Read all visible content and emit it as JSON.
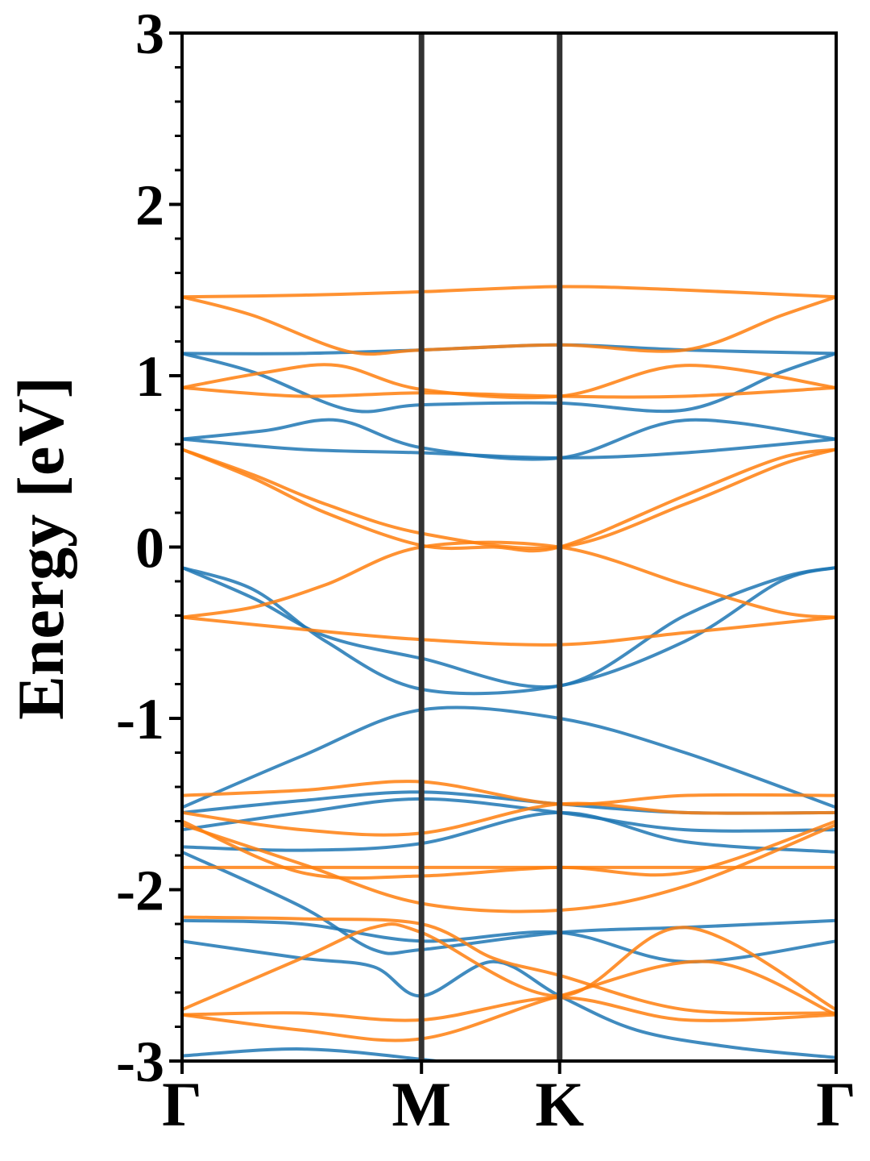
{
  "chart_data": {
    "type": "line",
    "title": "",
    "xlabel": "",
    "ylabel": "Energy [eV]",
    "ylim": [
      -3,
      3
    ],
    "yticks": [
      3,
      2,
      1,
      0,
      -1,
      -2,
      -3
    ],
    "ytick_labels": [
      "3",
      "2",
      "1",
      "0",
      "-1",
      "-2",
      "-3"
    ],
    "y_minor_step": 0.2,
    "kpath": {
      "labels": [
        "Γ",
        "M",
        "K",
        "Γ"
      ],
      "positions": [
        0,
        1,
        1.577,
        2.732
      ]
    },
    "grid": false,
    "legend": "none",
    "series": [
      {
        "color": "#1f77b4",
        "bands": [
          [
            [
              0,
              -2.97
            ],
            [
              0.5,
              -2.93
            ],
            [
              1,
              -2.99
            ],
            [
              1.3,
              -3.05
            ]
          ],
          [
            [
              0,
              -2.3
            ],
            [
              0.5,
              -2.4
            ],
            [
              0.8,
              -2.45
            ],
            [
              1,
              -2.62
            ],
            [
              1.3,
              -2.42
            ],
            [
              1.577,
              -2.62
            ],
            [
              1.9,
              -2.82
            ],
            [
              2.3,
              -2.92
            ],
            [
              2.732,
              -2.98
            ]
          ],
          [
            [
              0,
              -2.18
            ],
            [
              0.5,
              -2.2
            ],
            [
              1,
              -2.3
            ],
            [
              1.577,
              -2.25
            ],
            [
              2.1,
              -2.42
            ],
            [
              2.732,
              -2.3
            ]
          ],
          [
            [
              0,
              -1.78
            ],
            [
              0.5,
              -2.1
            ],
            [
              0.8,
              -2.35
            ],
            [
              1,
              -2.35
            ],
            [
              1.577,
              -2.25
            ],
            [
              2.1,
              -2.22
            ],
            [
              2.732,
              -2.18
            ]
          ],
          [
            [
              0,
              -1.75
            ],
            [
              0.5,
              -1.77
            ],
            [
              1,
              -1.73
            ],
            [
              1.577,
              -1.55
            ],
            [
              2.1,
              -1.72
            ],
            [
              2.732,
              -1.78
            ]
          ],
          [
            [
              0,
              -1.65
            ],
            [
              0.5,
              -1.55
            ],
            [
              1,
              -1.47
            ],
            [
              1.577,
              -1.55
            ],
            [
              2.1,
              -1.65
            ],
            [
              2.732,
              -1.65
            ]
          ],
          [
            [
              0,
              -1.55
            ],
            [
              0.5,
              -1.48
            ],
            [
              1,
              -1.43
            ],
            [
              1.577,
              -1.5
            ],
            [
              2.1,
              -1.55
            ],
            [
              2.732,
              -1.55
            ]
          ],
          [
            [
              0,
              -1.52
            ],
            [
              0.5,
              -1.22
            ],
            [
              1,
              -0.95
            ],
            [
              1.577,
              -1.0
            ],
            [
              2.1,
              -1.2
            ],
            [
              2.732,
              -1.52
            ]
          ],
          [
            [
              0,
              -0.12
            ],
            [
              0.3,
              -0.25
            ],
            [
              0.6,
              -0.55
            ],
            [
              1,
              -0.83
            ],
            [
              1.577,
              -0.81
            ],
            [
              2.1,
              -0.55
            ],
            [
              2.5,
              -0.2
            ],
            [
              2.732,
              -0.12
            ]
          ],
          [
            [
              0,
              -0.12
            ],
            [
              0.3,
              -0.3
            ],
            [
              0.6,
              -0.52
            ],
            [
              1,
              -0.65
            ],
            [
              1.577,
              -0.81
            ],
            [
              2.1,
              -0.4
            ],
            [
              2.5,
              -0.18
            ],
            [
              2.732,
              -0.12
            ]
          ],
          [
            [
              0,
              0.63
            ],
            [
              0.5,
              0.57
            ],
            [
              1,
              0.55
            ],
            [
              1.577,
              0.52
            ],
            [
              2.1,
              0.55
            ],
            [
              2.732,
              0.63
            ]
          ],
          [
            [
              0,
              0.63
            ],
            [
              0.35,
              0.68
            ],
            [
              0.65,
              0.74
            ],
            [
              1,
              0.58
            ],
            [
              1.577,
              0.52
            ],
            [
              2.1,
              0.74
            ],
            [
              2.732,
              0.63
            ]
          ],
          [
            [
              0,
              1.13
            ],
            [
              0.3,
              1.02
            ],
            [
              0.7,
              0.8
            ],
            [
              1,
              0.83
            ],
            [
              1.577,
              0.84
            ],
            [
              2.1,
              0.8
            ],
            [
              2.5,
              1.02
            ],
            [
              2.732,
              1.13
            ]
          ],
          [
            [
              0,
              1.13
            ],
            [
              0.5,
              1.13
            ],
            [
              1,
              1.15
            ],
            [
              1.577,
              1.18
            ],
            [
              2.1,
              1.15
            ],
            [
              2.732,
              1.13
            ]
          ]
        ]
      },
      {
        "color": "#ff7f0e",
        "bands": [
          [
            [
              0,
              -2.73
            ],
            [
              0.5,
              -2.72
            ],
            [
              1,
              -2.76
            ],
            [
              1.577,
              -2.63
            ],
            [
              2.1,
              -2.76
            ],
            [
              2.732,
              -2.73
            ]
          ],
          [
            [
              0,
              -2.73
            ],
            [
              0.5,
              -2.82
            ],
            [
              1,
              -2.87
            ],
            [
              1.577,
              -2.62
            ],
            [
              2.2,
              -2.42
            ],
            [
              2.732,
              -2.73
            ]
          ],
          [
            [
              0,
              -2.7
            ],
            [
              0.5,
              -2.4
            ],
            [
              0.8,
              -2.22
            ],
            [
              1,
              -2.25
            ],
            [
              1.577,
              -2.62
            ],
            [
              2.1,
              -2.22
            ],
            [
              2.732,
              -2.7
            ]
          ],
          [
            [
              0,
              -2.16
            ],
            [
              0.5,
              -2.17
            ],
            [
              1,
              -2.2
            ],
            [
              1.3,
              -2.4
            ],
            [
              1.577,
              -2.5
            ],
            [
              2.1,
              -2.7
            ],
            [
              2.732,
              -2.72
            ]
          ],
          [
            [
              0,
              -1.87
            ],
            [
              0.5,
              -1.87
            ],
            [
              1,
              -1.87
            ],
            [
              1.577,
              -1.87
            ],
            [
              2.1,
              -1.87
            ],
            [
              2.732,
              -1.87
            ]
          ],
          [
            [
              0,
              -1.6
            ],
            [
              0.5,
              -1.9
            ],
            [
              1,
              -1.92
            ],
            [
              1.577,
              -1.87
            ],
            [
              2.1,
              -1.9
            ],
            [
              2.732,
              -1.6
            ]
          ],
          [
            [
              0,
              -1.62
            ],
            [
              0.5,
              -1.85
            ],
            [
              1,
              -2.08
            ],
            [
              1.577,
              -2.12
            ],
            [
              2.1,
              -1.98
            ],
            [
              2.732,
              -1.62
            ]
          ],
          [
            [
              0,
              -1.55
            ],
            [
              0.5,
              -1.65
            ],
            [
              1,
              -1.67
            ],
            [
              1.577,
              -1.5
            ],
            [
              2.1,
              -1.55
            ],
            [
              2.732,
              -1.55
            ]
          ],
          [
            [
              0,
              -1.45
            ],
            [
              0.5,
              -1.42
            ],
            [
              1,
              -1.37
            ],
            [
              1.577,
              -1.5
            ],
            [
              2.1,
              -1.45
            ],
            [
              2.732,
              -1.45
            ]
          ],
          [
            [
              0,
              -0.41
            ],
            [
              0.5,
              -0.48
            ],
            [
              1,
              -0.54
            ],
            [
              1.577,
              -0.57
            ],
            [
              2.1,
              -0.5
            ],
            [
              2.732,
              -0.41
            ]
          ],
          [
            [
              0,
              -0.41
            ],
            [
              0.3,
              -0.35
            ],
            [
              0.6,
              -0.22
            ],
            [
              1,
              0.0
            ],
            [
              1.577,
              0.0
            ],
            [
              2.1,
              -0.22
            ],
            [
              2.5,
              -0.38
            ],
            [
              2.732,
              -0.41
            ]
          ],
          [
            [
              0,
              0.57
            ],
            [
              0.3,
              0.4
            ],
            [
              0.6,
              0.2
            ],
            [
              1,
              0.01
            ],
            [
              1.3,
              0.0
            ],
            [
              1.577,
              0.0
            ],
            [
              2.1,
              0.3
            ],
            [
              2.5,
              0.52
            ],
            [
              2.732,
              0.57
            ]
          ],
          [
            [
              0,
              0.57
            ],
            [
              0.3,
              0.42
            ],
            [
              0.6,
              0.25
            ],
            [
              1,
              0.08
            ],
            [
              1.577,
              0.0
            ],
            [
              2.1,
              0.25
            ],
            [
              2.5,
              0.48
            ],
            [
              2.732,
              0.57
            ]
          ],
          [
            [
              0,
              0.93
            ],
            [
              0.5,
              0.88
            ],
            [
              1,
              0.9
            ],
            [
              1.577,
              0.88
            ],
            [
              2.1,
              0.88
            ],
            [
              2.732,
              0.93
            ]
          ],
          [
            [
              0,
              0.93
            ],
            [
              0.35,
              1.02
            ],
            [
              0.65,
              1.06
            ],
            [
              1,
              0.92
            ],
            [
              1.577,
              0.88
            ],
            [
              2.1,
              1.06
            ],
            [
              2.732,
              0.93
            ]
          ],
          [
            [
              0,
              1.46
            ],
            [
              0.3,
              1.35
            ],
            [
              0.7,
              1.14
            ],
            [
              1,
              1.15
            ],
            [
              1.577,
              1.18
            ],
            [
              2.1,
              1.15
            ],
            [
              2.5,
              1.35
            ],
            [
              2.732,
              1.46
            ]
          ],
          [
            [
              0,
              1.46
            ],
            [
              0.5,
              1.47
            ],
            [
              1,
              1.49
            ],
            [
              1.577,
              1.52
            ],
            [
              2.1,
              1.5
            ],
            [
              2.732,
              1.46
            ]
          ]
        ]
      }
    ]
  }
}
